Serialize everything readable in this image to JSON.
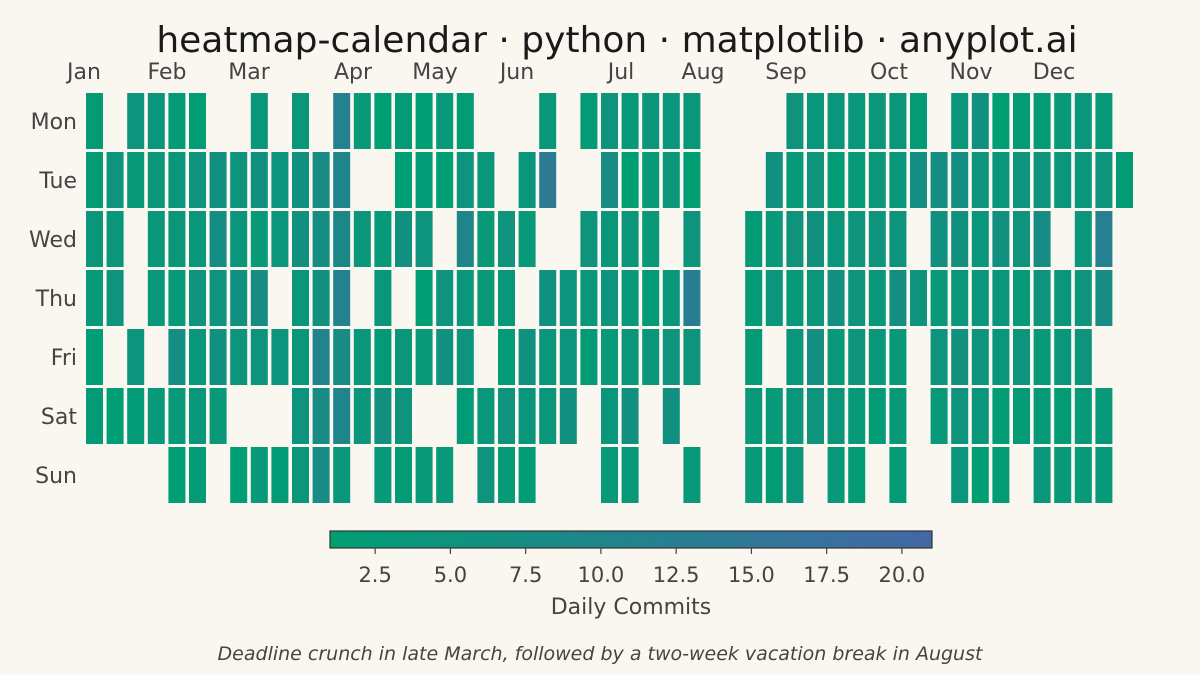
{
  "chart_data": {
    "type": "heatmap",
    "title": "heatmap-calendar · python · matplotlib · anyplot.ai",
    "months": [
      "Jan",
      "Feb",
      "Mar",
      "Apr",
      "May",
      "Jun",
      "Jul",
      "Aug",
      "Sep",
      "Oct",
      "Nov",
      "Dec"
    ],
    "days": [
      "Mon",
      "Tue",
      "Wed",
      "Thu",
      "Fri",
      "Sat",
      "Sun"
    ],
    "colorbar": {
      "label": "Daily Commits",
      "range": [
        1,
        21
      ],
      "ticks": [
        2.5,
        5.0,
        7.5,
        10.0,
        12.5,
        15.0,
        17.5,
        20.0
      ],
      "tick_labels": [
        "2.5",
        "5.0",
        "7.5",
        "10.0",
        "12.5",
        "15.0",
        "17.5",
        "20.0"
      ],
      "colors": [
        "#009E73",
        "#4467A6"
      ]
    },
    "caption": "Deadline crunch in late March, followed by a two-week vacation break in August",
    "empty_color": "#FAF7F1",
    "week_values": [
      [
        2,
        2,
        4,
        3,
        1,
        2,
        null
      ],
      [
        null,
        5,
        4,
        5,
        null,
        1,
        null
      ],
      [
        5,
        3,
        null,
        null,
        5,
        2,
        null
      ],
      [
        4,
        4,
        4,
        3,
        null,
        3,
        null
      ],
      [
        2,
        4,
        4,
        3,
        7,
        3,
        1
      ],
      [
        1,
        5,
        4,
        5,
        4,
        4,
        2
      ],
      [
        null,
        6,
        7,
        5,
        6,
        3,
        null
      ],
      [
        null,
        5,
        4,
        6,
        5,
        null,
        1
      ],
      [
        4,
        6,
        3,
        8,
        5,
        null,
        3
      ],
      [
        null,
        5,
        4,
        null,
        5,
        null,
        2
      ],
      [
        4,
        6,
        6,
        4,
        4,
        5,
        4
      ],
      [
        null,
        8,
        7,
        6,
        11,
        8,
        8
      ],
      [
        12,
        10,
        9,
        12,
        8,
        10,
        4
      ],
      [
        3,
        null,
        4,
        null,
        4,
        4,
        null
      ],
      [
        1,
        null,
        3,
        4,
        2,
        6,
        3
      ],
      [
        2,
        1,
        6,
        null,
        4,
        5,
        2
      ],
      [
        1,
        2,
        5,
        1,
        3,
        null,
        3
      ],
      [
        3,
        1,
        null,
        5,
        6,
        null,
        3
      ],
      [
        2,
        5,
        10,
        4,
        5,
        2,
        null
      ],
      [
        null,
        4,
        3,
        3,
        null,
        4,
        5
      ],
      [
        null,
        null,
        5,
        4,
        2,
        5,
        3
      ],
      [
        null,
        4,
        3,
        null,
        6,
        4,
        2
      ],
      [
        4,
        14,
        null,
        6,
        4,
        4,
        null
      ],
      [
        null,
        null,
        null,
        5,
        5,
        6,
        null
      ],
      [
        2,
        null,
        5,
        4,
        2,
        null,
        null
      ],
      [
        5,
        8,
        4,
        5,
        3,
        4,
        3
      ],
      [
        3,
        1,
        4,
        3,
        4,
        6,
        3
      ],
      [
        4,
        3,
        3,
        2,
        4,
        null,
        null
      ],
      [
        4,
        4,
        null,
        4,
        5,
        6,
        null
      ],
      [
        4,
        1,
        5,
        13,
        5,
        null,
        3
      ],
      [
        null,
        null,
        null,
        null,
        null,
        null,
        null
      ],
      [
        null,
        null,
        null,
        null,
        null,
        null,
        null
      ],
      [
        null,
        null,
        2,
        2,
        2,
        3,
        3
      ],
      [
        null,
        6,
        3,
        4,
        null,
        3,
        2
      ],
      [
        5,
        3,
        5,
        3,
        4,
        4,
        4
      ],
      [
        4,
        5,
        6,
        4,
        7,
        5,
        null
      ],
      [
        4,
        2,
        4,
        6,
        3,
        4,
        3
      ],
      [
        4,
        3,
        5,
        5,
        5,
        3,
        2
      ],
      [
        4,
        4,
        5,
        4,
        4,
        2,
        null
      ],
      [
        4,
        4,
        5,
        7,
        3,
        3,
        2
      ],
      [
        2,
        7,
        null,
        5,
        null,
        null,
        null
      ],
      [
        null,
        7,
        6,
        3,
        5,
        3,
        null
      ],
      [
        4,
        7,
        6,
        4,
        6,
        5,
        4
      ],
      [
        6,
        5,
        4,
        4,
        5,
        4,
        1
      ],
      [
        1,
        4,
        6,
        4,
        4,
        2,
        2
      ],
      [
        2,
        5,
        5,
        3,
        5,
        2,
        null
      ],
      [
        2,
        5,
        8,
        5,
        3,
        3,
        4
      ],
      [
        3,
        4,
        null,
        4,
        4,
        2,
        3
      ],
      [
        4,
        4,
        4,
        5,
        5,
        3,
        3
      ],
      [
        3,
        5,
        12,
        8,
        null,
        3,
        3
      ],
      [
        null,
        2,
        null,
        null,
        null,
        null,
        null
      ]
    ]
  }
}
